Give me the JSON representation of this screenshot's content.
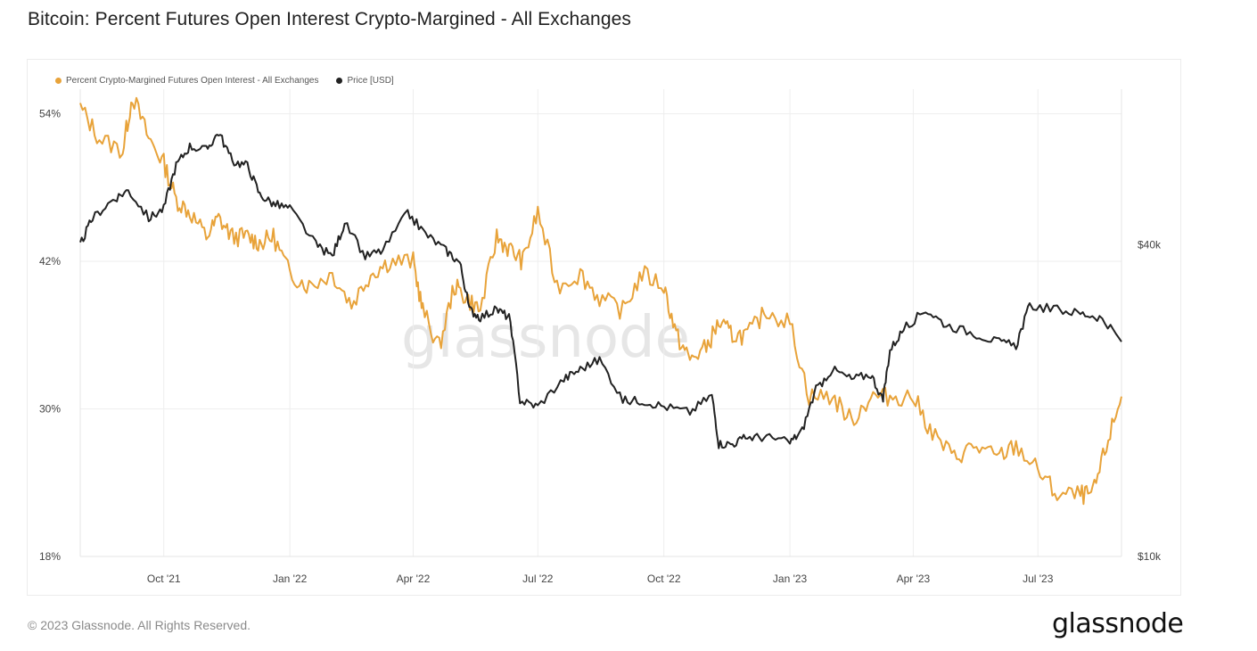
{
  "title": "Bitcoin: Percent Futures Open Interest Crypto-Margined - All Exchanges",
  "footer": {
    "copyright": "© 2023 Glassnode. All Rights Reserved.",
    "logo_text": "glassnode"
  },
  "chart_data": {
    "type": "line",
    "title": "Bitcoin: Percent Futures Open Interest Crypto-Margined - All Exchanges",
    "watermark": "glassnode",
    "legend_position": "top-left",
    "grid": true,
    "x_ticks": [
      "Oct '21",
      "Jan '22",
      "Apr '22",
      "Jul '22",
      "Oct '22",
      "Jan '23",
      "Apr '23",
      "Jul '23"
    ],
    "x_range": [
      "2021-08-01",
      "2023-08-31"
    ],
    "y_left": {
      "ticks": [
        "18%",
        "30%",
        "42%",
        "54%"
      ],
      "range": [
        18,
        56
      ],
      "unit": "%"
    },
    "y_right": {
      "ticks": [
        "$10k",
        "$40k"
      ],
      "range": [
        10000,
        80000
      ],
      "scale": "log"
    },
    "colors": {
      "percent": "#E8A33A",
      "price": "#222222",
      "grid": "#eeeeee"
    },
    "series": [
      {
        "name": "Percent Crypto-Margined Futures Open Interest - All Exchanges",
        "axis": "left",
        "x": [
          "2021-08-01",
          "2021-08-15",
          "2021-09-01",
          "2021-09-08",
          "2021-09-20",
          "2021-10-01",
          "2021-10-10",
          "2021-10-20",
          "2021-11-01",
          "2021-11-10",
          "2021-11-20",
          "2021-12-01",
          "2021-12-10",
          "2021-12-20",
          "2022-01-01",
          "2022-01-15",
          "2022-02-01",
          "2022-02-15",
          "2022-03-01",
          "2022-03-15",
          "2022-04-01",
          "2022-04-08",
          "2022-04-20",
          "2022-05-01",
          "2022-05-10",
          "2022-05-20",
          "2022-06-01",
          "2022-06-10",
          "2022-06-20",
          "2022-07-01",
          "2022-07-15",
          "2022-08-01",
          "2022-08-15",
          "2022-09-01",
          "2022-09-15",
          "2022-10-01",
          "2022-10-10",
          "2022-10-20",
          "2022-11-01",
          "2022-11-10",
          "2022-11-20",
          "2022-12-01",
          "2022-12-15",
          "2023-01-01",
          "2023-01-15",
          "2023-02-01",
          "2023-02-15",
          "2023-03-01",
          "2023-03-15",
          "2023-04-01",
          "2023-04-15",
          "2023-05-01",
          "2023-05-15",
          "2023-06-01",
          "2023-06-15",
          "2023-07-01",
          "2023-07-15",
          "2023-08-01",
          "2023-08-10",
          "2023-08-20",
          "2023-08-31"
        ],
        "values": [
          54.5,
          52,
          51,
          55.5,
          52,
          50,
          47,
          46,
          44,
          45.5,
          44,
          44,
          43.5,
          44,
          41,
          40,
          41,
          38.5,
          41,
          42,
          42,
          38,
          35,
          40,
          39,
          38,
          44,
          43,
          42,
          46,
          40,
          41,
          39,
          38,
          41,
          40,
          36,
          34,
          35,
          37,
          36,
          36,
          38,
          37,
          31,
          31,
          29,
          31,
          31,
          31,
          28,
          26,
          27,
          26,
          27,
          25,
          23,
          23,
          23,
          27,
          31
        ]
      },
      {
        "name": "Price [USD]",
        "axis": "right",
        "x": [
          "2021-08-01",
          "2021-08-10",
          "2021-08-25",
          "2021-09-05",
          "2021-09-20",
          "2021-10-01",
          "2021-10-10",
          "2021-10-20",
          "2021-11-01",
          "2021-11-10",
          "2021-11-20",
          "2021-12-01",
          "2021-12-10",
          "2021-12-20",
          "2022-01-01",
          "2022-01-20",
          "2022-02-01",
          "2022-02-10",
          "2022-02-25",
          "2022-03-10",
          "2022-03-28",
          "2022-04-10",
          "2022-04-25",
          "2022-05-05",
          "2022-05-12",
          "2022-05-20",
          "2022-06-01",
          "2022-06-10",
          "2022-06-18",
          "2022-07-01",
          "2022-07-20",
          "2022-08-01",
          "2022-08-15",
          "2022-09-01",
          "2022-09-15",
          "2022-10-01",
          "2022-10-20",
          "2022-11-05",
          "2022-11-10",
          "2022-11-20",
          "2022-12-01",
          "2022-12-15",
          "2023-01-01",
          "2023-01-10",
          "2023-01-20",
          "2023-02-01",
          "2023-02-15",
          "2023-03-01",
          "2023-03-10",
          "2023-03-15",
          "2023-03-25",
          "2023-04-10",
          "2023-04-25",
          "2023-05-15",
          "2023-06-01",
          "2023-06-15",
          "2023-06-25",
          "2023-07-15",
          "2023-08-01",
          "2023-08-15",
          "2023-08-31"
        ],
        "values": [
          40000,
          45000,
          49000,
          51000,
          45000,
          47000,
          57000,
          62000,
          61000,
          66000,
          58000,
          57000,
          50000,
          48000,
          47000,
          40000,
          38000,
          44000,
          38000,
          39000,
          46000,
          42000,
          39000,
          37000,
          30000,
          29000,
          30000,
          29000,
          20000,
          19500,
          22000,
          23000,
          24000,
          20000,
          20000,
          19500,
          19000,
          20500,
          16500,
          16500,
          17000,
          17000,
          16600,
          17500,
          21000,
          23000,
          22000,
          22500,
          20000,
          25000,
          27500,
          30000,
          28000,
          27000,
          26000,
          25500,
          30500,
          30000,
          29500,
          29000,
          26000
        ]
      }
    ]
  }
}
